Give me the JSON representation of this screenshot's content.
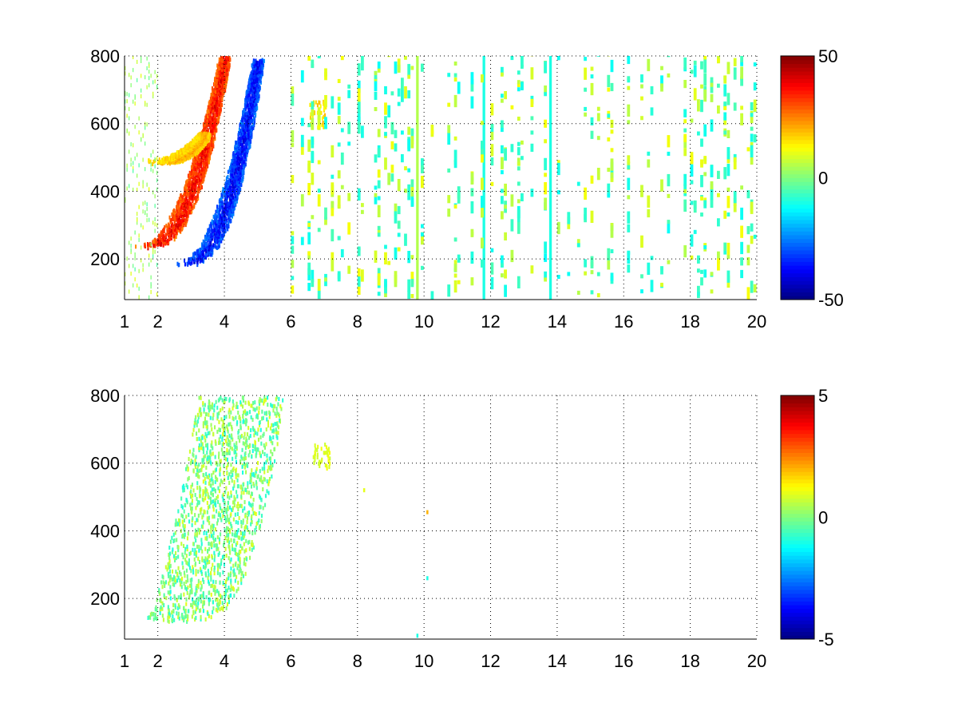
{
  "chart_data": [
    {
      "type": "heatmap",
      "panel": "top",
      "title": "",
      "xlabel": "",
      "ylabel": "",
      "xlim": [
        1,
        20
      ],
      "ylim": [
        80,
        800
      ],
      "xticks": [
        1,
        2,
        4,
        6,
        8,
        10,
        12,
        14,
        16,
        18,
        20
      ],
      "yticks": [
        200,
        400,
        600,
        800
      ],
      "grid": true,
      "colormap": "jet",
      "colorbar": {
        "range": [
          -50,
          50
        ],
        "ticks": [
          50,
          0,
          -50
        ]
      },
      "features": [
        {
          "kind": "curved-band",
          "sign": "positive",
          "x_start": 1.6,
          "x_end": 4.0,
          "y_start": 230,
          "y_end": 790,
          "peak_value": 45
        },
        {
          "kind": "curved-band",
          "sign": "negative",
          "x_start": 2.8,
          "x_end": 5.0,
          "y_start": 180,
          "y_end": 780,
          "peak_value": -45
        },
        {
          "kind": "curved-band",
          "sign": "positive",
          "x_start": 2.0,
          "x_end": 3.4,
          "y_start": 480,
          "y_end": 560,
          "peak_value": 25
        },
        {
          "kind": "patch",
          "sign": "positive",
          "x": 6.8,
          "y": 620,
          "peak_value": 20
        },
        {
          "kind": "vertical-stripe",
          "x": 9.8,
          "value": 5
        },
        {
          "kind": "vertical-stripe",
          "x": 11.8,
          "value": -10
        },
        {
          "kind": "vertical-stripe",
          "x": 13.8,
          "value": -10
        }
      ],
      "noise": {
        "x_range": [
          6,
          20
        ],
        "value_range": [
          -12,
          12
        ]
      }
    },
    {
      "type": "heatmap",
      "panel": "bottom",
      "title": "",
      "xlabel": "",
      "ylabel": "",
      "xlim": [
        1,
        20
      ],
      "ylim": [
        80,
        800
      ],
      "xticks": [
        1,
        2,
        4,
        6,
        8,
        10,
        12,
        14,
        16,
        18,
        20
      ],
      "yticks": [
        200,
        400,
        600,
        800
      ],
      "grid": true,
      "colormap": "jet",
      "colorbar": {
        "range": [
          -5,
          5
        ],
        "ticks": [
          5,
          0,
          -5
        ]
      },
      "features": [
        {
          "kind": "curved-region",
          "x_start": 1.6,
          "x_end": 5.8,
          "y_start": 130,
          "y_end": 790,
          "value_range": [
            -1,
            1
          ]
        },
        {
          "kind": "patch",
          "x": 6.9,
          "y": 610,
          "value": 1.2
        },
        {
          "kind": "speck",
          "x": 8.2,
          "y": 520,
          "value": 1.0
        },
        {
          "kind": "speck",
          "x": 10.1,
          "y": 455,
          "value": 2.0
        },
        {
          "kind": "speck",
          "x": 10.1,
          "y": 260,
          "value": -1.0
        },
        {
          "kind": "speck",
          "x": 9.8,
          "y": 90,
          "value": -1.0
        }
      ]
    }
  ]
}
